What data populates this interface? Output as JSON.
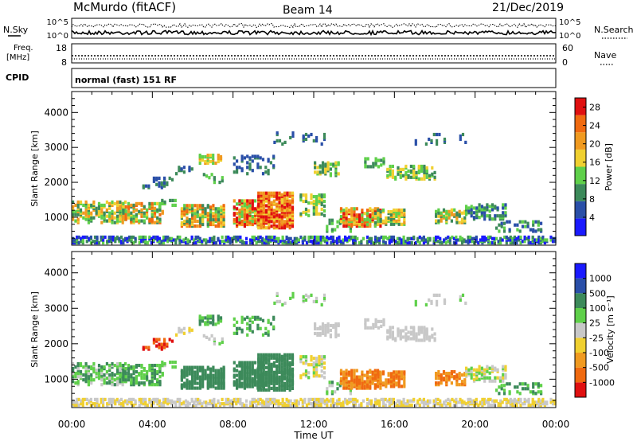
{
  "header": {
    "station": "McMurdo (fitACF)",
    "beam": "Beam 14",
    "date": "21/Dec/2019"
  },
  "strips": {
    "nsky_label": "N.Sky",
    "nsearch_label": "N.Search",
    "nsky_ticks": [
      "10^5",
      "10^0"
    ],
    "nsearch_ticks": [
      "10^5",
      "10^0"
    ],
    "freq_label_1": "Freq.",
    "freq_label_2": "[MHz]",
    "freq_ticks": [
      "18",
      "8"
    ],
    "nave_label": "Nave",
    "nave_ticks": [
      "60",
      "0"
    ],
    "cpid_label": "CPID",
    "cpid_text": "normal (fast) 151 RF"
  },
  "colors": {
    "power": [
      "#1a1aff",
      "#2a4fa8",
      "#3c8a5a",
      "#5fd04a",
      "#f0d030",
      "#f09a20",
      "#f06a10",
      "#e01010"
    ],
    "velocity": [
      "#e01010",
      "#f06a10",
      "#f09a20",
      "#f0d030",
      "#c8c8c8",
      "#5fd04a",
      "#3c8a5a",
      "#2a4fa8",
      "#1a1aff"
    ],
    "trace": "#000000"
  },
  "chart_data": [
    {
      "type": "heatmap",
      "name": "power",
      "ylabel": "Slant Range [km]",
      "y_ticks": [
        "1000",
        "2000",
        "3000",
        "4000"
      ],
      "ylim": [
        200,
        4600
      ],
      "x_range_hours": [
        0,
        24
      ],
      "colorbar": {
        "label": "Power [dB]",
        "ticks": [
          "4",
          "8",
          "12",
          "16",
          "20",
          "24",
          "28"
        ],
        "range": [
          0,
          30
        ]
      }
    },
    {
      "type": "heatmap",
      "name": "velocity",
      "ylabel": "Slant Range [km]",
      "y_ticks": [
        "1000",
        "2000",
        "3000",
        "4000"
      ],
      "ylim": [
        200,
        4600
      ],
      "x_range_hours": [
        0,
        24
      ],
      "colorbar": {
        "label": "Velocity [m s⁻¹]",
        "ticks": [
          "-1000",
          "-500",
          "-100",
          "-25",
          "25",
          "100",
          "500",
          "1000"
        ]
      }
    }
  ],
  "x_axis": {
    "label": "Time UT",
    "ticks": [
      "00:00",
      "04:00",
      "08:00",
      "12:00",
      "16:00",
      "20:00",
      "00:00"
    ]
  }
}
